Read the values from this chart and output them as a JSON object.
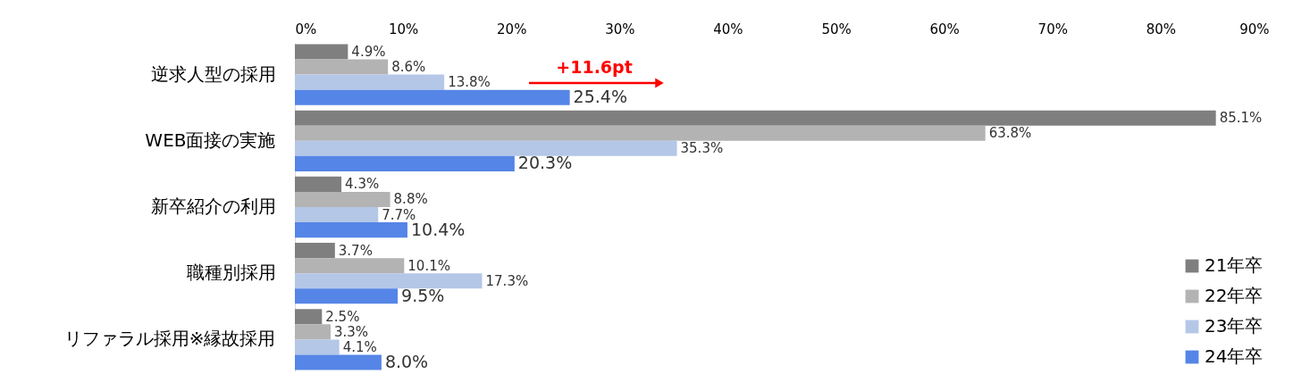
{
  "chart_data": {
    "type": "bar",
    "orientation": "horizontal",
    "categories": [
      "逆求人型の採用",
      "WEB面接の実施",
      "新卒紹介の利用",
      "職種別採用",
      "リファラル採用※縁故採用"
    ],
    "series": [
      {
        "name": "21年卒",
        "color": "#7f7f7f",
        "values": [
          4.9,
          85.1,
          4.3,
          3.7,
          2.5
        ],
        "value_labels": [
          "4.9%",
          "85.1%",
          "4.3%",
          "3.7%",
          "2.5%"
        ]
      },
      {
        "name": "22年卒",
        "color": "#b3b3b3",
        "values": [
          8.6,
          63.8,
          8.8,
          10.1,
          3.3
        ],
        "value_labels": [
          "8.6%",
          "63.8%",
          "8.8%",
          "10.1%",
          "3.3%"
        ]
      },
      {
        "name": "23年卒",
        "color": "#b4c7e7",
        "values": [
          13.8,
          35.3,
          7.7,
          17.3,
          4.1
        ],
        "value_labels": [
          "13.8%",
          "35.3%",
          "7.7%",
          "17.3%",
          "4.1%"
        ]
      },
      {
        "name": "24年卒",
        "color": "#5585e6",
        "values": [
          25.4,
          20.3,
          10.4,
          9.5,
          8.0
        ],
        "value_labels": [
          "25.4%",
          "20.3%",
          "10.4%",
          "9.5%",
          "8.0%"
        ]
      }
    ],
    "xlim": [
      0,
      90
    ],
    "xticks": [
      {
        "value": 0,
        "label": "0%"
      },
      {
        "value": 10,
        "label": "10%"
      },
      {
        "value": 20,
        "label": "20%"
      },
      {
        "value": 30,
        "label": "30%"
      },
      {
        "value": 40,
        "label": "40%"
      },
      {
        "value": 50,
        "label": "50%"
      },
      {
        "value": 60,
        "label": "60%"
      },
      {
        "value": 70,
        "label": "70%"
      },
      {
        "value": 80,
        "label": "80%"
      },
      {
        "value": 90,
        "label": "90%"
      }
    ],
    "annotations": [
      "+11.6pt"
    ],
    "legend": "bottom right",
    "grid": false
  }
}
